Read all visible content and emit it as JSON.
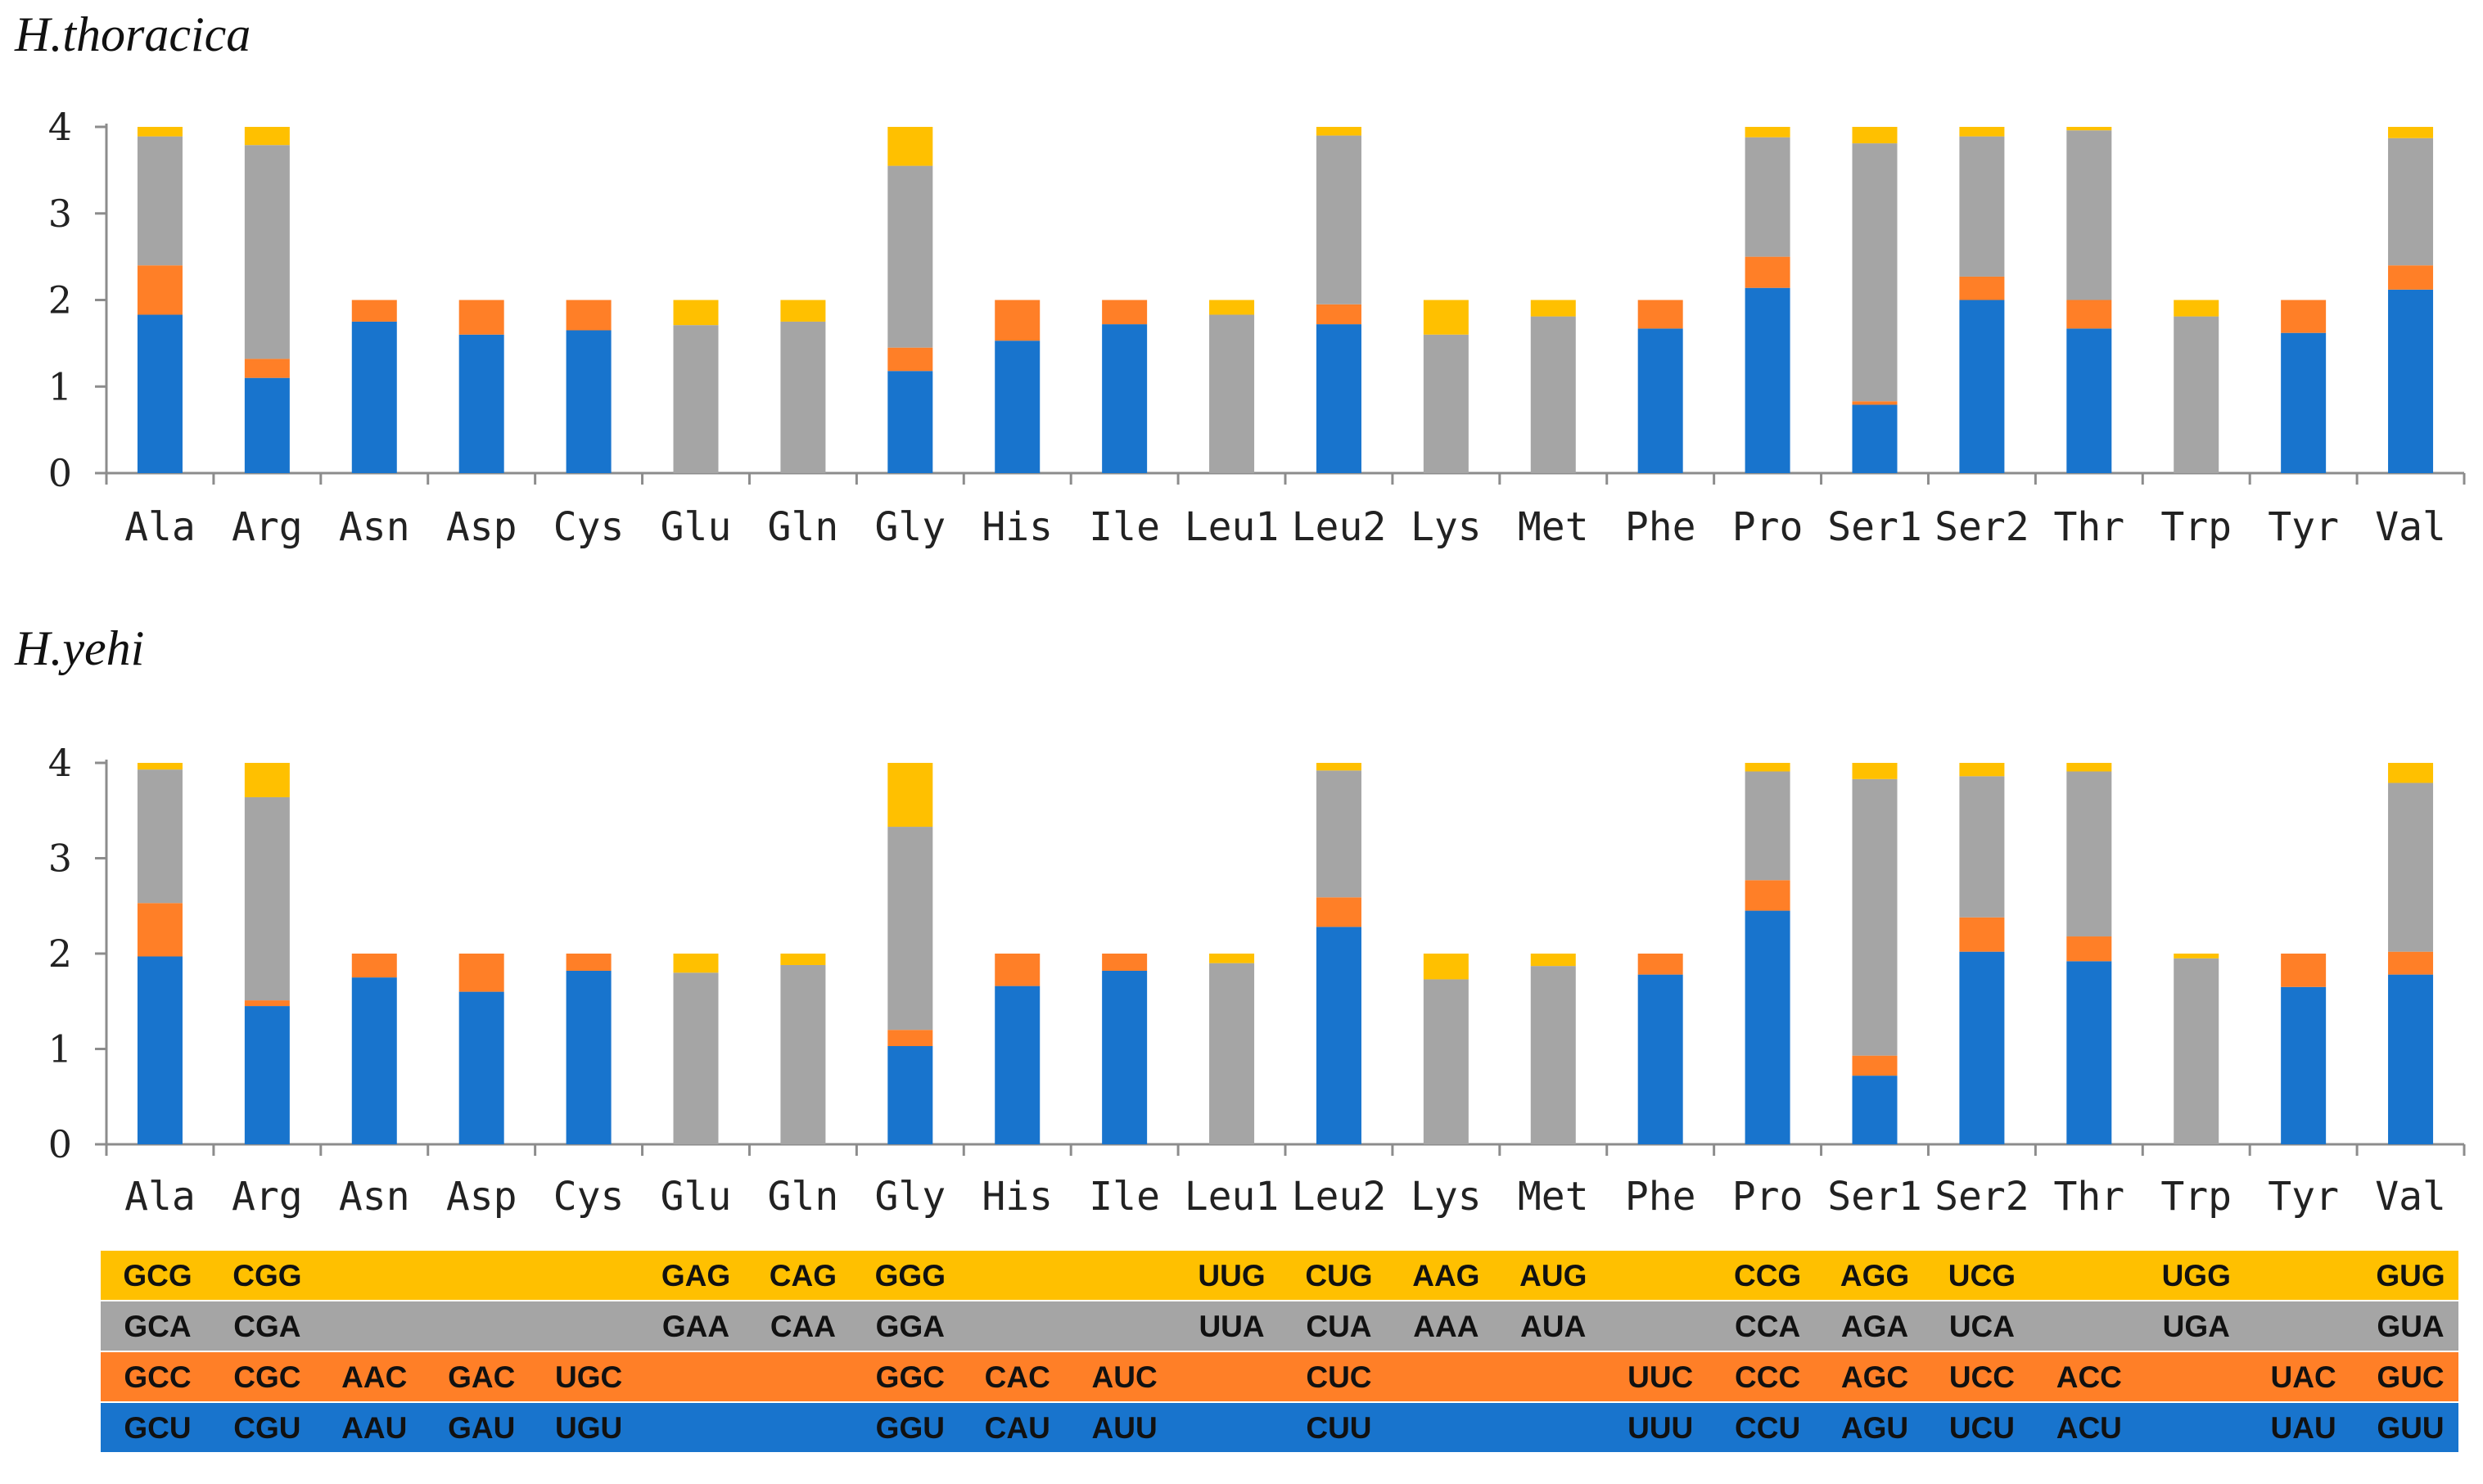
{
  "colors": {
    "third": "#FFC000",
    "second": "#A5A5A5",
    "first_alt": "#FF7F27",
    "first": "#1874CD"
  },
  "chart_data": [
    {
      "type": "bar",
      "stacked": true,
      "title": "H.thoracica",
      "ylim": [
        0,
        4
      ],
      "yticks": [
        0,
        1,
        2,
        3,
        4
      ],
      "categories": [
        "Ala",
        "Arg",
        "Asn",
        "Asp",
        "Cys",
        "Glu",
        "Gln",
        "Gly",
        "His",
        "Ile",
        "Leu1",
        "Leu2",
        "Lys",
        "Met",
        "Phe",
        "Pro",
        "Ser1",
        "Ser2",
        "Thr",
        "Trp",
        "Tyr",
        "Val"
      ],
      "series": [
        {
          "name": "blue",
          "values": [
            1.83,
            1.1,
            1.75,
            1.6,
            1.65,
            0,
            0,
            1.18,
            1.53,
            1.72,
            0,
            1.72,
            0,
            0,
            1.67,
            2.14,
            0.79,
            2.0,
            1.67,
            0,
            1.62,
            2.12
          ]
        },
        {
          "name": "orange",
          "values": [
            0.57,
            0.22,
            0.25,
            0.4,
            0.35,
            0,
            0,
            0.27,
            0.47,
            0.28,
            0,
            0.23,
            0,
            0,
            0.33,
            0.36,
            0.04,
            0.27,
            0.33,
            0,
            0.38,
            0.28
          ]
        },
        {
          "name": "gray",
          "values": [
            1.49,
            2.47,
            0,
            0,
            0,
            1.71,
            1.75,
            2.1,
            0,
            0,
            1.83,
            1.95,
            1.6,
            1.81,
            0,
            1.38,
            2.98,
            1.62,
            1.96,
            1.81,
            0,
            1.47
          ]
        },
        {
          "name": "yellow",
          "values": [
            0.11,
            0.21,
            0,
            0,
            0,
            0.29,
            0.25,
            0.45,
            0,
            0,
            0.17,
            0.1,
            0.4,
            0.19,
            0,
            0.12,
            0.19,
            0.11,
            0.04,
            0.19,
            0,
            0.13
          ]
        }
      ]
    },
    {
      "type": "bar",
      "stacked": true,
      "title": "H.yehi",
      "ylim": [
        0,
        4
      ],
      "yticks": [
        0,
        1,
        2,
        3,
        4
      ],
      "categories": [
        "Ala",
        "Arg",
        "Asn",
        "Asp",
        "Cys",
        "Glu",
        "Gln",
        "Gly",
        "His",
        "Ile",
        "Leu1",
        "Leu2",
        "Lys",
        "Met",
        "Phe",
        "Pro",
        "Ser1",
        "Ser2",
        "Thr",
        "Trp",
        "Tyr",
        "Val"
      ],
      "series": [
        {
          "name": "blue",
          "values": [
            1.97,
            1.45,
            1.75,
            1.6,
            1.82,
            0,
            0,
            1.03,
            1.66,
            1.82,
            0,
            2.28,
            0,
            0,
            1.78,
            2.45,
            0.72,
            2.02,
            1.92,
            0,
            1.65,
            1.78
          ]
        },
        {
          "name": "orange",
          "values": [
            0.56,
            0.06,
            0.25,
            0.4,
            0.18,
            0,
            0,
            0.17,
            0.34,
            0.18,
            0,
            0.31,
            0,
            0,
            0.22,
            0.32,
            0.21,
            0.36,
            0.26,
            0,
            0.35,
            0.24
          ]
        },
        {
          "name": "gray",
          "values": [
            1.4,
            2.13,
            0,
            0,
            0,
            1.8,
            1.88,
            2.13,
            0,
            0,
            1.9,
            1.33,
            1.73,
            1.87,
            0,
            1.14,
            2.9,
            1.48,
            1.73,
            1.95,
            0,
            1.77
          ]
        },
        {
          "name": "yellow",
          "values": [
            0.07,
            0.36,
            0,
            0,
            0,
            0.2,
            0.12,
            0.67,
            0,
            0,
            0.1,
            0.08,
            0.27,
            0.13,
            0,
            0.09,
            0.17,
            0.14,
            0.09,
            0.05,
            0,
            0.21
          ]
        }
      ]
    }
  ],
  "codon_legend": {
    "rows": [
      {
        "name": "yellow",
        "codons": [
          "GCG",
          "CGG",
          "",
          "",
          "",
          "GAG",
          "CAG",
          "GGG",
          "",
          "",
          "UUG",
          "CUG",
          "AAG",
          "AUG",
          "",
          "CCG",
          "AGG",
          "UCG",
          "",
          "UGG",
          "",
          "GUG"
        ]
      },
      {
        "name": "gray",
        "codons": [
          "GCA",
          "CGA",
          "",
          "",
          "",
          "GAA",
          "CAA",
          "GGA",
          "",
          "",
          "UUA",
          "CUA",
          "AAA",
          "AUA",
          "",
          "CCA",
          "AGA",
          "UCA",
          "",
          "UGA",
          "",
          "GUA"
        ]
      },
      {
        "name": "orange",
        "codons": [
          "GCC",
          "CGC",
          "AAC",
          "GAC",
          "UGC",
          "",
          "",
          "GGC",
          "CAC",
          "AUC",
          "",
          "CUC",
          "",
          "",
          "UUC",
          "CCC",
          "AGC",
          "UCC",
          "ACC",
          "",
          "UAC",
          "GUC"
        ]
      },
      {
        "name": "blue",
        "codons": [
          "GCU",
          "CGU",
          "AAU",
          "GAU",
          "UGU",
          "",
          "",
          "GGU",
          "CAU",
          "AUU",
          "",
          "CUU",
          "",
          "",
          "UUU",
          "CCU",
          "AGU",
          "UCU",
          "ACU",
          "",
          "UAU",
          "GUU"
        ]
      }
    ]
  }
}
